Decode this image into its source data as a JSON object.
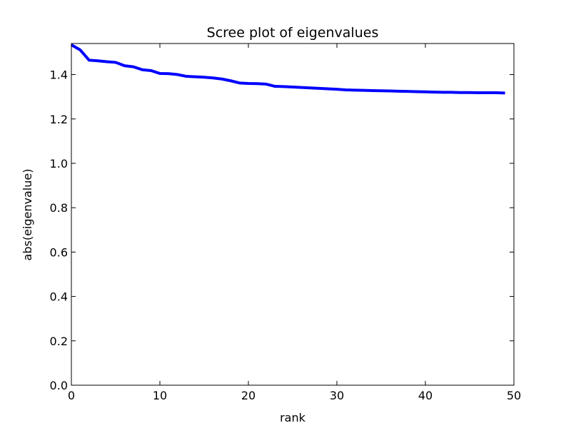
{
  "chart_data": {
    "type": "line",
    "title": "Scree plot of eigenvalues",
    "xlabel": "rank",
    "ylabel": "abs(eigenvalue)",
    "xlim": [
      0,
      50
    ],
    "ylim": [
      0.0,
      1.54
    ],
    "x_ticks": [
      0,
      10,
      20,
      30,
      40,
      50
    ],
    "x_tick_labels": [
      "0",
      "10",
      "20",
      "30",
      "40",
      "50"
    ],
    "y_ticks": [
      0.0,
      0.2,
      0.4,
      0.6,
      0.8,
      1.0,
      1.2,
      1.4
    ],
    "y_tick_labels": [
      "0.0",
      "0.2",
      "0.4",
      "0.6",
      "0.8",
      "1.0",
      "1.2",
      "1.4"
    ],
    "grid": false,
    "line_color": "#0000ff",
    "series": [
      {
        "x": [
          0,
          1,
          2,
          3,
          4,
          5,
          6,
          7,
          8,
          9,
          10,
          11,
          12,
          13,
          14,
          15,
          16,
          17,
          18,
          19,
          20,
          21,
          22,
          23,
          24,
          25,
          26,
          27,
          28,
          29,
          30,
          31,
          32,
          33,
          34,
          35,
          36,
          37,
          38,
          39,
          40,
          41,
          42,
          43,
          44,
          45,
          46,
          47,
          48,
          49
        ],
        "values": [
          1.534,
          1.511,
          1.465,
          1.462,
          1.458,
          1.455,
          1.44,
          1.435,
          1.422,
          1.418,
          1.405,
          1.404,
          1.4,
          1.392,
          1.39,
          1.388,
          1.385,
          1.38,
          1.372,
          1.362,
          1.36,
          1.359,
          1.357,
          1.347,
          1.346,
          1.344,
          1.342,
          1.34,
          1.338,
          1.336,
          1.334,
          1.331,
          1.33,
          1.329,
          1.328,
          1.327,
          1.326,
          1.325,
          1.324,
          1.323,
          1.322,
          1.321,
          1.32,
          1.32,
          1.319,
          1.319,
          1.318,
          1.318,
          1.318,
          1.317
        ]
      }
    ]
  }
}
